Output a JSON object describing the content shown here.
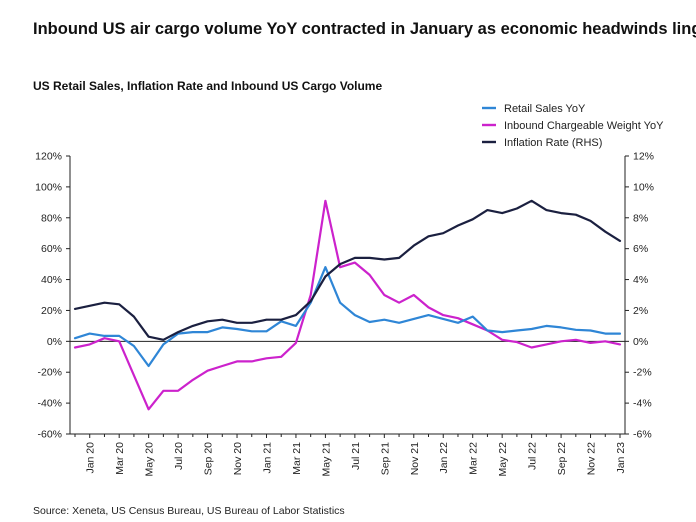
{
  "headline": "Inbound US air cargo volume YoY contracted in January as economic headwinds linger",
  "source": "Source: Xeneta, US Census Bureau, US Bureau of Labor Statistics",
  "chart_data": {
    "type": "line",
    "title": "US Retail Sales, Inflation Rate and Inbound US Cargo Volume",
    "x_tick_labels": [
      "Jan 20",
      "Mar 20",
      "May 20",
      "Jul 20",
      "Sep 20",
      "Nov 20",
      "Jan 21",
      "Mar 21",
      "May 21",
      "Jul 21",
      "Sep 21",
      "Nov 21",
      "Jan 22",
      "Mar 22",
      "May 22",
      "Jul 22",
      "Sep 22",
      "Nov 22",
      "Jan 23"
    ],
    "x": [
      "Dec 19",
      "Jan 20",
      "Feb 20",
      "Mar 20",
      "Apr 20",
      "May 20",
      "Jun 20",
      "Jul 20",
      "Aug 20",
      "Sep 20",
      "Oct 20",
      "Nov 20",
      "Dec 20",
      "Jan 21",
      "Feb 21",
      "Mar 21",
      "Apr 21",
      "May 21",
      "Jun 21",
      "Jul 21",
      "Aug 21",
      "Sep 21",
      "Oct 21",
      "Nov 21",
      "Dec 21",
      "Jan 22",
      "Feb 22",
      "Mar 22",
      "Apr 22",
      "May 22",
      "Jun 22",
      "Jul 22",
      "Aug 22",
      "Sep 22",
      "Oct 22",
      "Nov 22",
      "Dec 22",
      "Jan 23"
    ],
    "y_left": {
      "ticks": [
        "120%",
        "100%",
        "80%",
        "60%",
        "40%",
        "20%",
        "0%",
        "-20%",
        "-40%",
        "-60%"
      ],
      "ylim": [
        -60,
        120
      ]
    },
    "y_right": {
      "ticks": [
        "12%",
        "10%",
        "8%",
        "6%",
        "4%",
        "2%",
        "0%",
        "-2%",
        "-4%",
        "-6%"
      ],
      "ylim": [
        -6,
        12
      ]
    },
    "grid": false,
    "legend_position": "top-right",
    "series": [
      {
        "name": "Retail Sales YoY",
        "axis": "left",
        "color": "#2f86d6",
        "values": [
          2,
          5,
          3.5,
          3.5,
          -3,
          -16,
          -2,
          5,
          6,
          6,
          9,
          8,
          6.5,
          6.5,
          13,
          10,
          25,
          48,
          25,
          17,
          12.5,
          14,
          12,
          14.5,
          17,
          14.5,
          12,
          16,
          7,
          6,
          7,
          8,
          10,
          9,
          7.5,
          7,
          5,
          5
        ]
      },
      {
        "name": "Inbound Chargeable Weight YoY",
        "axis": "left",
        "color": "#cc22cc",
        "values": [
          -4,
          -2,
          2,
          0,
          -22,
          -44,
          -32,
          -32,
          -25,
          -19,
          -16,
          -13,
          -13,
          -11,
          -10,
          -1,
          30,
          91,
          48,
          51,
          43,
          30,
          25,
          30,
          22,
          17,
          15,
          11,
          7,
          1,
          -0.5,
          -4,
          -2,
          0,
          1,
          -1,
          0,
          -2
        ]
      },
      {
        "name": "Inflation Rate (RHS)",
        "axis": "right",
        "color": "#1b2040",
        "values": [
          2.1,
          2.3,
          2.5,
          2.4,
          1.6,
          0.3,
          0.1,
          0.6,
          1.0,
          1.3,
          1.4,
          1.2,
          1.2,
          1.4,
          1.4,
          1.7,
          2.6,
          4.2,
          5.0,
          5.4,
          5.4,
          5.3,
          5.4,
          6.2,
          6.8,
          7.0,
          7.5,
          7.9,
          8.5,
          8.3,
          8.6,
          9.1,
          8.5,
          8.3,
          8.2,
          7.8,
          7.1,
          6.5
        ]
      }
    ]
  }
}
